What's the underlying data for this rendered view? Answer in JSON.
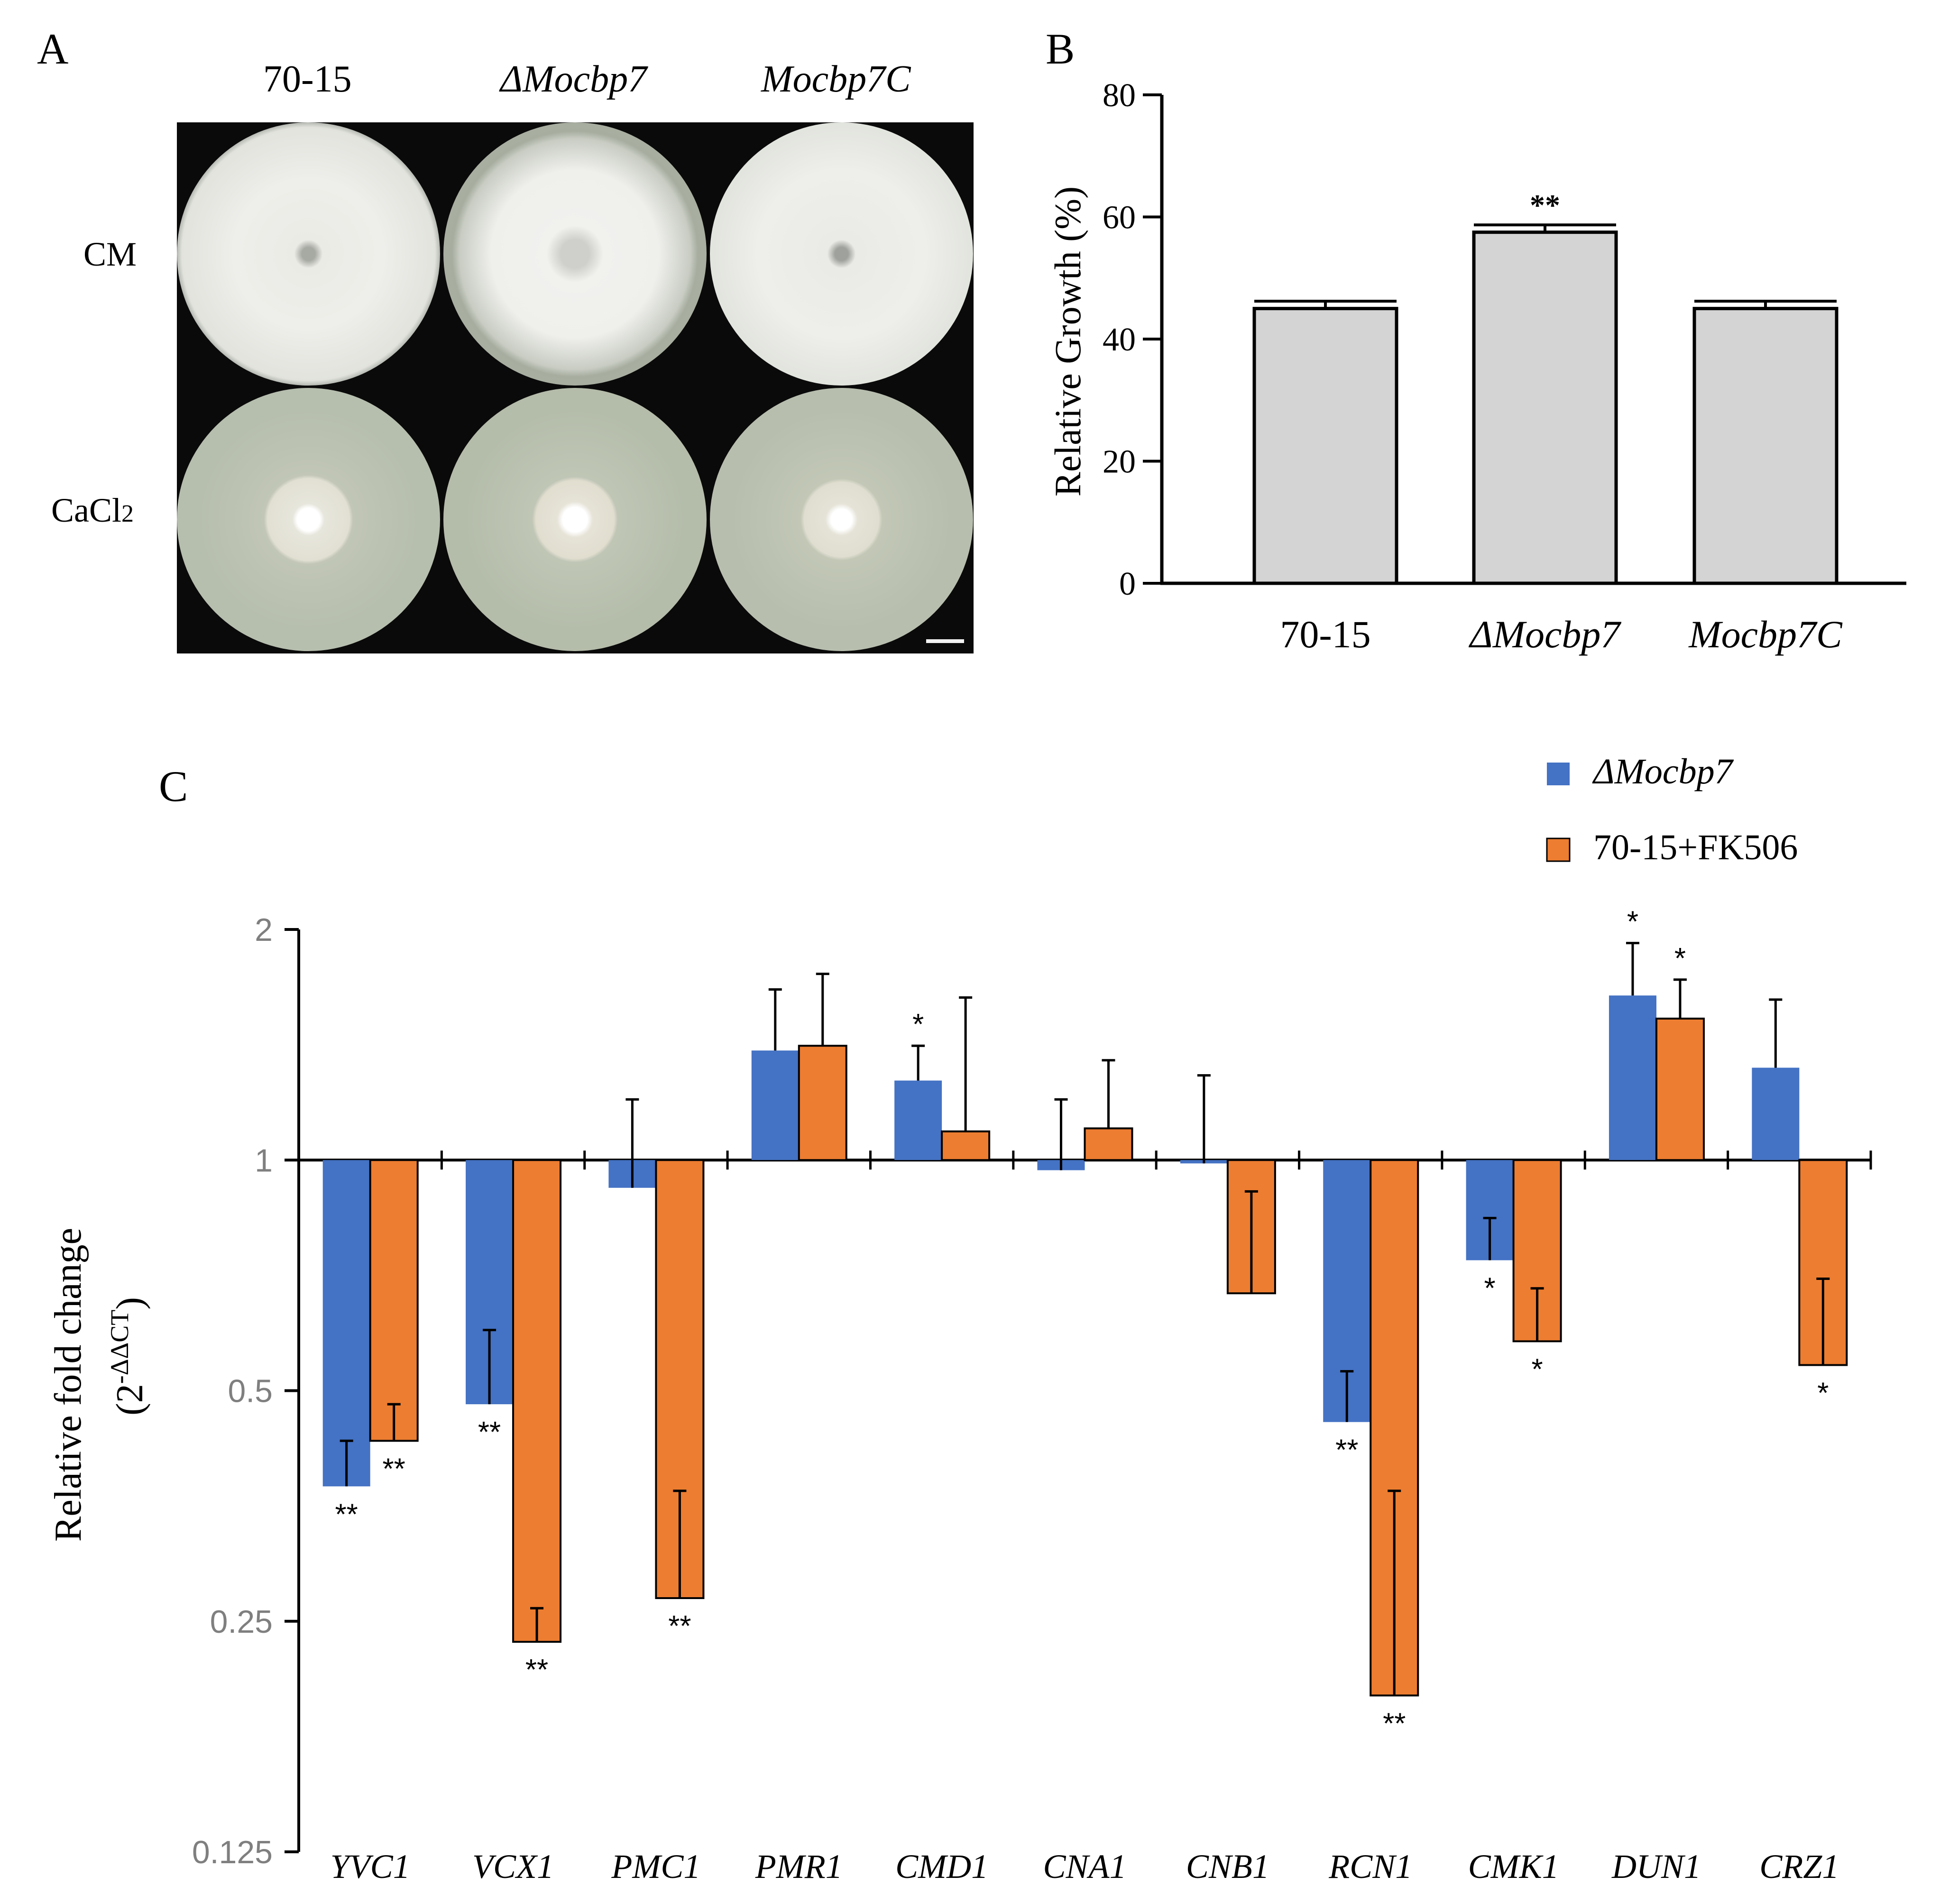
{
  "panel_a": {
    "letter": "A",
    "strains": [
      "70-15",
      "ΔMocbp7",
      "Mocbp7C"
    ],
    "conditions": [
      "CM",
      "CaCl2"
    ],
    "condition_cacl2_base": "CaCl",
    "condition_cacl2_sub": "2"
  },
  "panel_b": {
    "letter": "B"
  },
  "panel_c": {
    "letter": "C"
  },
  "colors": {
    "bar_gray": "#d4d4d4",
    "series_mutant": "#4472c4",
    "series_fk506": "#ed7d31",
    "plate_agar": "#b9c0b8",
    "colony": "#eeeeea",
    "axis_gray_text": "#7f7f7f"
  },
  "chart_data": [
    {
      "id": "B",
      "type": "bar",
      "title": "",
      "xlabel": "",
      "ylabel": "Relative Growth (%)",
      "ylim": [
        0,
        80
      ],
      "yticks": [
        0,
        20,
        40,
        60,
        80
      ],
      "categories": [
        "70-15",
        "ΔMocbp7",
        "Mocbp7C"
      ],
      "values": [
        45,
        57.5,
        45
      ],
      "errors": [
        1.2,
        1.2,
        1.2
      ],
      "annotations": [
        "",
        "**",
        ""
      ],
      "grid": false
    },
    {
      "id": "C",
      "type": "bar",
      "title": "",
      "xlabel": "",
      "ylabel": "Relative fold change",
      "ylabel_line2": "(2-ΔΔCT)",
      "ylabel_line2_base": "(2",
      "ylabel_line2_sup": "-ΔΔCT",
      "ylabel_line2_end": ")",
      "yscale": "log2",
      "ylim": [
        0.125,
        2
      ],
      "yticks": [
        0.125,
        0.25,
        0.5,
        1,
        2
      ],
      "ytick_labels": [
        "0.125",
        "0.25",
        "0.5",
        "1",
        "2"
      ],
      "baseline": 1,
      "grid": false,
      "legend_position": "top-right",
      "categories": [
        "YVC1",
        "VCX1",
        "PMC1",
        "PMR1",
        "CMD1",
        "CNA1",
        "CNB1",
        "RCN1",
        "CMK1",
        "DUN1",
        "CRZ1"
      ],
      "series": [
        {
          "name": "ΔMocbp7",
          "color": "#4472c4",
          "values": [
            0.375,
            0.48,
            0.92,
            1.39,
            1.27,
            0.97,
            0.99,
            0.455,
            0.74,
            1.64,
            1.32
          ],
          "error_ends": [
            0.43,
            0.6,
            1.2,
            1.67,
            1.41,
            1.2,
            1.29,
            0.53,
            0.84,
            1.92,
            1.62
          ],
          "annotations": [
            "**",
            "**",
            "",
            "",
            "*",
            "",
            "",
            "**",
            "*",
            "*",
            ""
          ]
        },
        {
          "name": "70-15+FK506",
          "color": "#ed7d31",
          "values": [
            0.43,
            0.235,
            0.268,
            1.41,
            1.09,
            1.1,
            0.67,
            0.2,
            0.58,
            1.53,
            0.54
          ],
          "error_ends": [
            0.48,
            0.26,
            0.37,
            1.75,
            1.63,
            1.35,
            0.91,
            0.37,
            0.68,
            1.72,
            0.7
          ],
          "annotations": [
            "**",
            "**",
            "**",
            "",
            "",
            "",
            "",
            "**",
            "*",
            "*",
            "*"
          ]
        }
      ]
    }
  ]
}
